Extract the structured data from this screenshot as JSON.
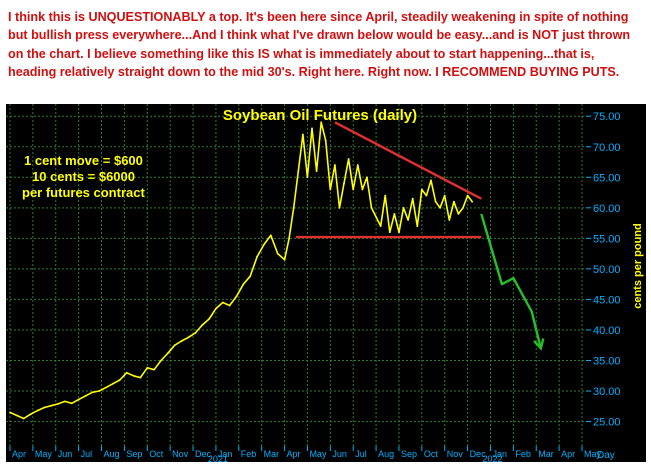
{
  "note": "I think this is UNQUESTIONABLY a top. It's been here since April, steadily weakening in spite of nothing but bullish press everywhere...And I think what I've drawn below would be easy...and is NOT just thrown on the chart. I believe something like this IS what is immediately about to start happening...that is, heading relatively straight down to the mid 30's. Right here. Right now. I RECOMMEND BUYING PUTS.",
  "colors": {
    "background": "#000000",
    "price": "#ffff00",
    "gridlines": "#2e7d2e",
    "axis_text": "#00b0ff",
    "annotation_red": "#e03030",
    "projection_green": "#28c028",
    "note_text": "#d01010"
  },
  "annotations": [
    "1 cent move = $600",
    "10 cents = $6000",
    "per futures contract"
  ],
  "chart_data": {
    "type": "line",
    "title": "Soybean Oil Futures (daily)",
    "ylabel": "cents per pound",
    "xlabel": "Day",
    "ylim": [
      21,
      77
    ],
    "y_ticks": [
      25.0,
      30.0,
      35.0,
      40.0,
      45.0,
      50.0,
      55.0,
      60.0,
      65.0,
      70.0,
      75.0
    ],
    "x_range": [
      0,
      25
    ],
    "month_labels": [
      "Apr",
      "May",
      "Jun",
      "Jul",
      "Aug",
      "Sep",
      "Oct",
      "Nov",
      "Dec",
      "Jan",
      "Feb",
      "Mar",
      "Apr",
      "May",
      "Jun",
      "Jul",
      "Aug",
      "Sep",
      "Oct",
      "Nov",
      "Dec",
      "Jan",
      "Feb",
      "Mar",
      "Apr",
      "May"
    ],
    "year_labels": [
      {
        "month_index": 9,
        "year": "2021"
      },
      {
        "month_index": 21,
        "year": "2022"
      }
    ],
    "grid": true,
    "series": [
      {
        "x": [
          0.0,
          0.3,
          0.6,
          0.9,
          1.2,
          1.5,
          1.8,
          2.1,
          2.4,
          2.7,
          3.0,
          3.3,
          3.6,
          3.9,
          4.2,
          4.5,
          4.8,
          5.1,
          5.4,
          5.7,
          6.0,
          6.3,
          6.6,
          6.9,
          7.2,
          7.5,
          7.8,
          8.1,
          8.4,
          8.7,
          9.0,
          9.3,
          9.6,
          9.9,
          10.2,
          10.5,
          10.8,
          11.1,
          11.4,
          11.7,
          12.0,
          12.2,
          12.4,
          12.6,
          12.8,
          13.0,
          13.2,
          13.4,
          13.6,
          13.8,
          14.0,
          14.2,
          14.4,
          14.6,
          14.8,
          15.0,
          15.2,
          15.4,
          15.6,
          15.8,
          16.0,
          16.2,
          16.4,
          16.6,
          16.8,
          17.0,
          17.2,
          17.4,
          17.6,
          17.8,
          18.0,
          18.2,
          18.4,
          18.6,
          18.8,
          19.0,
          19.2,
          19.4,
          19.6,
          19.8,
          20.0,
          20.2
        ],
        "values": [
          26.5,
          26.0,
          25.5,
          26.2,
          26.8,
          27.3,
          27.6,
          27.9,
          28.3,
          28.0,
          28.6,
          29.2,
          29.8,
          30.0,
          30.6,
          31.2,
          31.8,
          33.0,
          32.5,
          32.2,
          33.8,
          33.5,
          35.0,
          36.2,
          37.5,
          38.2,
          38.8,
          39.5,
          40.8,
          41.8,
          43.5,
          44.5,
          44.0,
          45.5,
          47.5,
          48.8,
          52.0,
          54.0,
          55.5,
          52.5,
          51.5,
          55.0,
          60.0,
          66.0,
          72.0,
          65.0,
          73.0,
          66.0,
          74.0,
          71.0,
          63.0,
          67.0,
          60.0,
          64.0,
          68.0,
          63.0,
          67.0,
          63.0,
          65.0,
          60.0,
          58.5,
          57.0,
          62.0,
          56.0,
          59.0,
          56.0,
          60.0,
          58.0,
          61.5,
          57.0,
          63.0,
          62.0,
          64.5,
          61.0,
          60.0,
          62.0,
          58.0,
          61.0,
          59.0,
          60.0,
          62.0,
          61.0
        ]
      }
    ],
    "drawn_lines": [
      {
        "name": "resistance-line",
        "color": "red",
        "x": [
          14.2,
          20.6
        ],
        "y": [
          74.0,
          61.5
        ]
      },
      {
        "name": "support-line",
        "color": "red",
        "x": [
          12.5,
          20.6
        ],
        "y": [
          55.2,
          55.2
        ]
      },
      {
        "name": "projection-path",
        "color": "green",
        "x": [
          20.6,
          21.5,
          22.0,
          22.8,
          23.2
        ],
        "y": [
          59.0,
          47.5,
          48.5,
          43.0,
          37.0
        ]
      }
    ]
  }
}
